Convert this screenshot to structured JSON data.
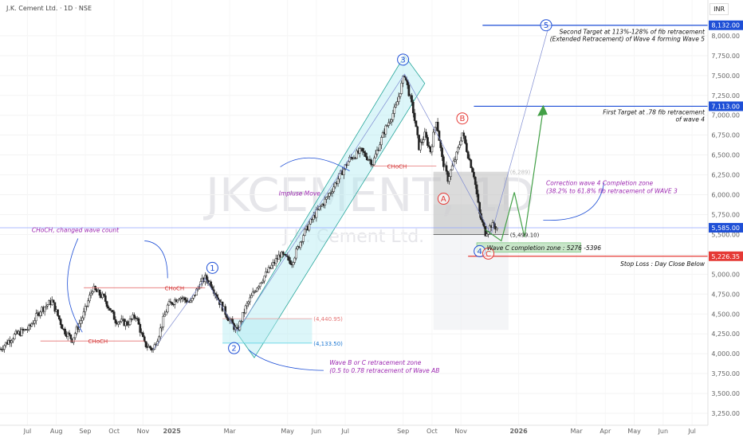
{
  "header": {
    "title": "J.K. Cement Ltd. · 1D · NSE",
    "currency": "INR"
  },
  "watermark": {
    "symbol": "JKCEMENT, 1D",
    "name": "J.K. Cement Ltd."
  },
  "colors": {
    "up": "#26a69a",
    "down": "#ef5350",
    "candle": "#000000",
    "blue": "#1e4fd6",
    "purple": "#9c27b0",
    "red": "#e53935",
    "green": "#43a047",
    "zone": "#b2ebf2"
  },
  "chart_data": {
    "type": "candlestick",
    "y_ticks": [
      3250,
      3500,
      3750,
      4000,
      4250,
      4500,
      4750,
      5000,
      5250,
      5500,
      5750,
      6000,
      6250,
      6500,
      6750,
      7000,
      7250,
      7500,
      7750,
      8000
    ],
    "y_tick_labels": [
      "3,250.00",
      "3,500.00",
      "3,750.00",
      "4,000.00",
      "4,250.00",
      "4,500.00",
      "4,750.00",
      "5,000.00",
      "5,250.00",
      "5,500.00",
      "5,750.00",
      "6,000.00",
      "6,250.00",
      "6,500.00",
      "6,750.00",
      "7,000.00",
      "7,250.00",
      "7,500.00",
      "7,750.00",
      "8,000.00"
    ],
    "ylim": [
      3100,
      8450
    ],
    "x_ticks": [
      {
        "label": "Jul",
        "m": 0.55
      },
      {
        "label": "Aug",
        "m": 1.55
      },
      {
        "label": "Sep",
        "m": 2.55
      },
      {
        "label": "Oct",
        "m": 3.55
      },
      {
        "label": "Nov",
        "m": 4.55
      },
      {
        "label": "2025",
        "m": 5.55
      },
      {
        "label": "Mar",
        "m": 7.55
      },
      {
        "label": "May",
        "m": 9.55
      },
      {
        "label": "Jun",
        "m": 10.55
      },
      {
        "label": "Jul",
        "m": 11.55
      },
      {
        "label": "Sep",
        "m": 13.55
      },
      {
        "label": "Oct",
        "m": 14.55
      },
      {
        "label": "Nov",
        "m": 15.55
      },
      {
        "label": "2026",
        "m": 17.55
      },
      {
        "label": "Mar",
        "m": 19.55
      },
      {
        "label": "Apr",
        "m": 20.55
      },
      {
        "label": "May",
        "m": 21.55
      },
      {
        "label": "Jun",
        "m": 22.55
      },
      {
        "label": "Jul",
        "m": 23.55
      }
    ],
    "xlim_months": [
      -0.4,
      24.1
    ],
    "price_path": [
      [
        -0.4,
        4060
      ],
      [
        0.1,
        4230
      ],
      [
        0.6,
        4320
      ],
      [
        1.0,
        4550
      ],
      [
        1.4,
        4660
      ],
      [
        1.8,
        4300
      ],
      [
        2.1,
        4180
      ],
      [
        2.5,
        4500
      ],
      [
        2.8,
        4820
      ],
      [
        3.2,
        4700
      ],
      [
        3.6,
        4420
      ],
      [
        4.0,
        4380
      ],
      [
        4.3,
        4480
      ],
      [
        4.6,
        4120
      ],
      [
        4.9,
        4050
      ],
      [
        5.1,
        4250
      ],
      [
        5.4,
        4600
      ],
      [
        5.8,
        4720
      ],
      [
        6.2,
        4640
      ],
      [
        6.5,
        4870
      ],
      [
        6.7,
        4950
      ],
      [
        6.9,
        4880
      ],
      [
        7.2,
        4650
      ],
      [
        7.5,
        4450
      ],
      [
        7.8,
        4280
      ],
      [
        8.1,
        4580
      ],
      [
        8.5,
        4850
      ],
      [
        8.9,
        5050
      ],
      [
        9.3,
        5250
      ],
      [
        9.7,
        5150
      ],
      [
        10.1,
        5500
      ],
      [
        10.5,
        5750
      ],
      [
        10.9,
        5950
      ],
      [
        11.3,
        6200
      ],
      [
        11.7,
        6450
      ],
      [
        12.1,
        6550
      ],
      [
        12.5,
        6400
      ],
      [
        12.9,
        6800
      ],
      [
        13.3,
        7100
      ],
      [
        13.6,
        7520
      ],
      [
        13.9,
        7050
      ],
      [
        14.1,
        6600
      ],
      [
        14.3,
        6750
      ],
      [
        14.5,
        6550
      ],
      [
        14.7,
        6950
      ],
      [
        14.9,
        6450
      ],
      [
        15.1,
        6200
      ],
      [
        15.4,
        6500
      ],
      [
        15.6,
        6780
      ],
      [
        15.8,
        6500
      ],
      [
        16.0,
        6250
      ],
      [
        16.2,
        5750
      ],
      [
        16.4,
        5520
      ],
      [
        16.6,
        5620
      ],
      [
        16.8,
        5585
      ]
    ],
    "levels": {
      "second_target": 8132,
      "first_target": 7113,
      "last_price": 5585,
      "stop_loss": 5226.35,
      "correction_low": 5499.1
    }
  },
  "labels": {
    "price_last": "5,585.00",
    "price_first_target": "7,113.00",
    "price_second_target": "8,132.00",
    "price_stop": "5,226.35",
    "lvl_4440": "(4,440.95)",
    "lvl_4133": "(4,133.50)",
    "lvl_5499": "(5,499.10)",
    "lvl_6289": "(6,289)",
    "choch": "CHoCH",
    "wave1": "1",
    "wave2": "2",
    "wave3": "3",
    "wave4": "4",
    "wave5": "5",
    "waveA": "A",
    "waveB": "B",
    "waveC": "C"
  },
  "annotations": {
    "second_target": [
      "Second Target at 113%-128% of fib retracement",
      "(Extended Retracement) of Wave 4 forming Wave 5"
    ],
    "first_target": [
      "First Target at .78 fib retracement",
      "of wave 4"
    ],
    "correction_zone": [
      "Correction wave 4 Completion zone",
      "(38.2% to 61.8% fib retracement of WAVE 3"
    ],
    "wave_c_zone": "Wave C completion zone : 5276 -5396",
    "stop_loss": "Stop Loss : Day Close Below",
    "impulse": "Impluse Move",
    "choch_note": "CHoCH, changed wave count",
    "wave_b_zone": [
      "Wave B or C retracement zone",
      "(0.5 to 0.78 retracement of Wave AB"
    ]
  }
}
